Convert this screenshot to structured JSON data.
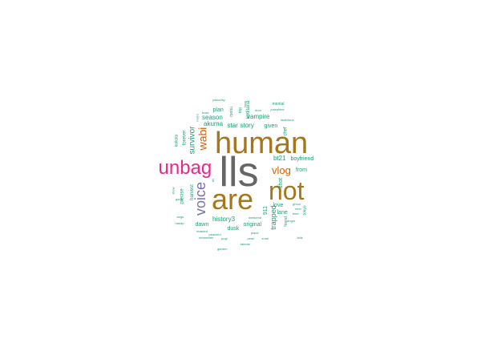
{
  "colors": {
    "teal": "#1b9e77",
    "orange": "#d95f02",
    "purple": "#7570b3",
    "magenta": "#e7298a",
    "gold": "#a6761d",
    "grey": "#666666"
  },
  "words": [
    {
      "text": "lls",
      "color": "grey",
      "orientation": "horizontal"
    },
    {
      "text": "human",
      "color": "gold",
      "orientation": "horizontal"
    },
    {
      "text": "are",
      "color": "gold",
      "orientation": "horizontal"
    },
    {
      "text": "not",
      "color": "gold",
      "orientation": "horizontal"
    },
    {
      "text": "unbag",
      "color": "magenta",
      "orientation": "horizontal"
    },
    {
      "text": "voice",
      "color": "purple",
      "orientation": "vertical"
    },
    {
      "text": "wabi",
      "color": "orange",
      "orientation": "vertical"
    },
    {
      "text": "vlog",
      "color": "orange",
      "orientation": "horizontal"
    },
    {
      "text": "survivor",
      "color": "teal",
      "orientation": "vertical"
    },
    {
      "text": "season",
      "color": "teal",
      "orientation": "horizontal"
    },
    {
      "text": "akuma",
      "color": "teal",
      "orientation": "horizontal"
    },
    {
      "text": "plan",
      "color": "teal",
      "orientation": "horizontal"
    },
    {
      "text": "star",
      "color": "teal",
      "orientation": "horizontal"
    },
    {
      "text": "story",
      "color": "teal",
      "orientation": "horizontal"
    },
    {
      "text": "vampire",
      "color": "teal",
      "orientation": "horizontal"
    },
    {
      "text": "given",
      "color": "teal",
      "orientation": "horizontal"
    },
    {
      "text": "bt21",
      "color": "teal",
      "orientation": "horizontal"
    },
    {
      "text": "boyfriend",
      "color": "teal",
      "orientation": "horizontal"
    },
    {
      "text": "shot",
      "color": "teal",
      "orientation": "vertical"
    },
    {
      "text": "from",
      "color": "teal",
      "orientation": "horizontal"
    },
    {
      "text": "history3",
      "color": "teal",
      "orientation": "horizontal"
    },
    {
      "text": "dawn",
      "color": "teal",
      "orientation": "horizontal"
    },
    {
      "text": "dusk",
      "color": "teal",
      "orientation": "horizontal"
    },
    {
      "text": "original",
      "color": "teal",
      "orientation": "horizontal"
    },
    {
      "text": "love",
      "color": "teal",
      "orientation": "horizontal"
    },
    {
      "text": "lane",
      "color": "teal",
      "orientation": "horizontal"
    },
    {
      "text": "911",
      "color": "teal",
      "orientation": "vertical"
    },
    {
      "text": "trapped",
      "color": "teal",
      "orientation": "vertical"
    },
    {
      "text": "kotlitaria",
      "color": "teal",
      "orientation": "vertical"
    },
    {
      "text": "chef",
      "color": "teal",
      "orientation": "vertical"
    },
    {
      "text": "harvest",
      "color": "teal",
      "orientation": "vertical"
    },
    {
      "text": "precise",
      "color": "teal",
      "orientation": "vertical"
    },
    {
      "text": "forever",
      "color": "teal",
      "orientation": "vertical"
    },
    {
      "text": "kolkata",
      "color": "teal",
      "orientation": "vertical"
    },
    {
      "text": "mental",
      "color": "teal",
      "orientation": "horizontal"
    },
    {
      "text": "josephine",
      "color": "teal",
      "orientation": "horizontal"
    },
    {
      "text": "ydaociey",
      "color": "teal",
      "orientation": "horizontal"
    },
    {
      "text": "door",
      "color": "teal",
      "orientation": "horizontal"
    },
    {
      "text": "boss",
      "color": "teal",
      "orientation": "horizontal"
    },
    {
      "text": "lactivious",
      "color": "teal",
      "orientation": "horizontal"
    },
    {
      "text": "next",
      "color": "teal",
      "orientation": "horizontal"
    },
    {
      "text": "time",
      "color": "teal",
      "orientation": "horizontal"
    },
    {
      "text": "ghoul",
      "color": "teal",
      "orientation": "horizontal"
    },
    {
      "text": "singer",
      "color": "teal",
      "orientation": "horizontal"
    },
    {
      "text": "tokyo",
      "color": "teal",
      "orientation": "vertical"
    },
    {
      "text": "friend",
      "color": "teal",
      "orientation": "vertical"
    },
    {
      "text": "kids",
      "color": "teal",
      "orientation": "horizontal"
    },
    {
      "text": "weekend",
      "color": "teal",
      "orientation": "horizontal"
    },
    {
      "text": "place",
      "color": "teal",
      "orientation": "horizontal"
    },
    {
      "text": "pearl",
      "color": "teal",
      "orientation": "horizontal"
    },
    {
      "text": "zone",
      "color": "teal",
      "orientation": "horizontal"
    },
    {
      "text": "talents",
      "color": "teal",
      "orientation": "horizontal"
    },
    {
      "text": "peaceful",
      "color": "teal",
      "orientation": "horizontal"
    },
    {
      "text": "masked",
      "color": "teal",
      "orientation": "horizontal"
    },
    {
      "text": "remember",
      "color": "teal",
      "orientation": "horizontal"
    },
    {
      "text": "pugi",
      "color": "teal",
      "orientation": "horizontal"
    },
    {
      "text": "garden",
      "color": "teal",
      "orientation": "horizontal"
    },
    {
      "text": "angs",
      "color": "teal",
      "orientation": "horizontal"
    },
    {
      "text": "hanap",
      "color": "teal",
      "orientation": "horizontal"
    },
    {
      "text": "game",
      "color": "teal",
      "orientation": "horizontal"
    },
    {
      "text": "show",
      "color": "teal",
      "orientation": "vertical"
    },
    {
      "text": "mord",
      "color": "teal",
      "orientation": "vertical"
    },
    {
      "text": "rpohu",
      "color": "teal",
      "orientation": "vertical"
    },
    {
      "text": "top",
      "color": "teal",
      "orientation": "vertical"
    },
    {
      "text": "long",
      "color": "teal",
      "orientation": "vertical"
    },
    {
      "text": "till",
      "color": "teal",
      "orientation": "vertical"
    }
  ]
}
